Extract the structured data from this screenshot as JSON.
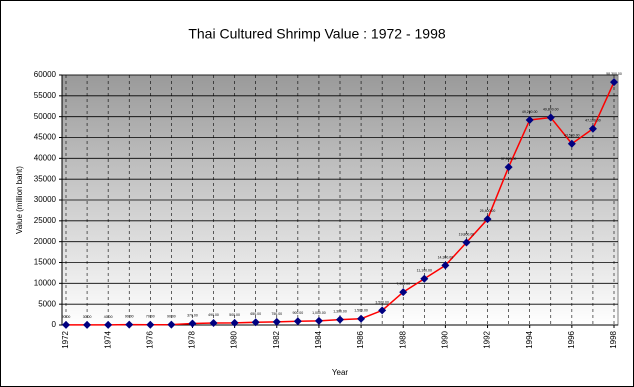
{
  "chart_data": {
    "type": "line",
    "title": "Thai Cultured Shrimp Value : 1972 - 1998",
    "x_label": "Year",
    "y_label": "Value (million baht)",
    "x": [
      1972,
      1973,
      1974,
      1975,
      1976,
      1977,
      1978,
      1979,
      1980,
      1981,
      1982,
      1983,
      1984,
      1985,
      1986,
      1987,
      1988,
      1989,
      1990,
      1991,
      1992,
      1993,
      1994,
      1995,
      1996,
      1997,
      1998
    ],
    "series": [
      {
        "name": "Value",
        "color": "#ff0000",
        "marker_color": "#000080",
        "values": [
          20,
          30,
          40,
          90,
          70,
          90,
          370,
          490,
          500,
          650,
          750,
          900,
          1000,
          1300,
          1500,
          3500,
          7900,
          11100,
          14300,
          19800,
          25400,
          37900,
          49200,
          49800,
          43500,
          47100,
          58300
        ],
        "value_labels": [
          "20.00",
          "30.00",
          "40.00",
          "90.00",
          "70.00",
          "90.00",
          "370.00",
          "490.00",
          "500.00",
          "650.00",
          "750.00",
          "900.00",
          "1,000.00",
          "1,300.00",
          "1,500.00",
          "3,500.00",
          "7,900.00",
          "11,100.00",
          "14,300.00",
          "19,800.00",
          "25,400.00",
          "37,900.00",
          "49,200.00",
          "49,800.00",
          "43,500.00",
          "47,100.00",
          "58,300.00"
        ]
      }
    ],
    "xlim": [
      1972,
      1998
    ],
    "xticks": [
      1972,
      1974,
      1976,
      1978,
      1980,
      1982,
      1984,
      1986,
      1988,
      1990,
      1992,
      1994,
      1996,
      1998
    ],
    "ylim": [
      0,
      60000
    ],
    "yticks": [
      0,
      5000,
      10000,
      15000,
      20000,
      25000,
      30000,
      35000,
      40000,
      45000,
      50000,
      55000,
      60000
    ],
    "grid": true
  }
}
